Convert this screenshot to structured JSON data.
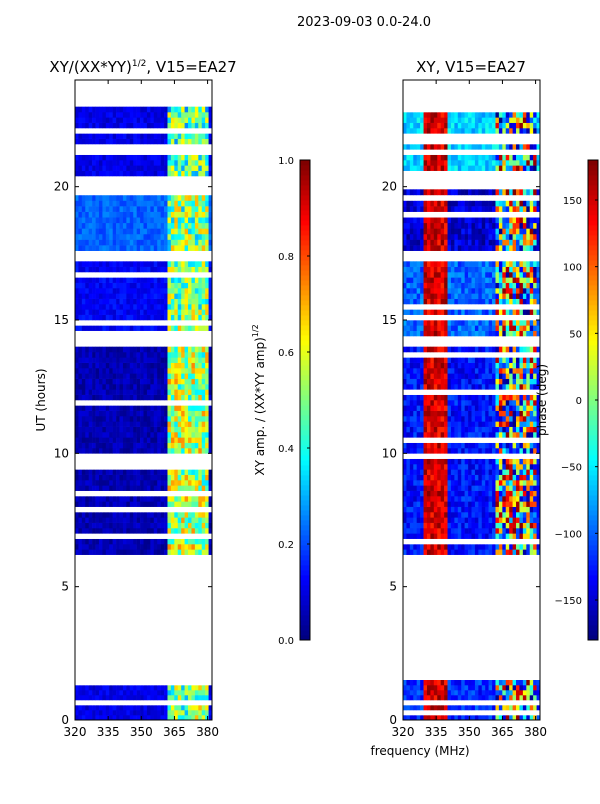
{
  "figure": {
    "suptitle": "2023-09-03 0.0-24.0",
    "shared_xlabel": "frequency (MHz)"
  },
  "chart_data": [
    {
      "type": "heatmap",
      "title_main": "XY/(XX*YY)",
      "title_sup": "1/2",
      "title_tail": ", V15=EA27",
      "ylabel": "UT (hours)",
      "xlim": [
        320,
        382
      ],
      "ylim": [
        0,
        24
      ],
      "xticks": [
        320,
        335,
        350,
        365,
        380
      ],
      "yticks": [
        0,
        5,
        10,
        15,
        20
      ],
      "colorbar": {
        "label_main": "XY amp. / (XX*YY amp)",
        "label_sup": "1/2",
        "range": [
          0.0,
          1.0
        ],
        "ticks": [
          "0.0",
          "0.2",
          "0.4",
          "0.6",
          "0.8",
          "1.0"
        ],
        "tick_values": [
          0.0,
          0.2,
          0.4,
          0.6,
          0.8,
          1.0
        ],
        "colormap": "jet"
      },
      "data_gaps_hours": [
        [
          1.5,
          6.2
        ],
        [
          14.0,
          14.4
        ],
        [
          17.2,
          17.6
        ],
        [
          19.9,
          20.4
        ],
        [
          23.0,
          24.0
        ]
      ],
      "regions": [
        {
          "t0": 0.0,
          "t1": 1.5,
          "value_low_band": 0.1,
          "value_high_band": 0.5
        },
        {
          "t0": 6.2,
          "t1": 14.0,
          "value_low_band": 0.05,
          "value_high_band": 0.55
        },
        {
          "t0": 14.4,
          "t1": 17.2,
          "value_low_band": 0.12,
          "value_high_band": 0.5
        },
        {
          "t0": 17.6,
          "t1": 19.9,
          "value_low_band": 0.22,
          "value_high_band": 0.5
        },
        {
          "t0": 20.4,
          "t1": 23.0,
          "value_low_band": 0.1,
          "value_high_band": 0.45
        }
      ],
      "bright_band_MHz": [
        362,
        380
      ]
    },
    {
      "type": "heatmap",
      "title": "XY, V15=EA27",
      "xlim": [
        320,
        382
      ],
      "ylim": [
        0,
        24
      ],
      "xticks": [
        320,
        335,
        350,
        365,
        380
      ],
      "yticks": [
        0,
        5,
        10,
        15,
        20
      ],
      "colorbar": {
        "label": "phase (deg)",
        "range": [
          -180,
          180
        ],
        "ticks": [
          "150",
          "100",
          "50",
          "0",
          "−50",
          "−100",
          "−150"
        ],
        "tick_values": [
          150,
          100,
          50,
          0,
          -50,
          -100,
          -150
        ],
        "colormap": "jet"
      },
      "data_gaps_hours": [
        [
          1.5,
          6.2
        ],
        [
          14.0,
          14.4
        ],
        [
          17.2,
          17.6
        ],
        [
          19.9,
          20.4
        ],
        [
          23.0,
          24.0
        ]
      ],
      "regions": [
        {
          "t0": 0.0,
          "t1": 1.5,
          "phase_deg": -120
        },
        {
          "t0": 6.2,
          "t1": 14.0,
          "phase_deg": -130
        },
        {
          "t0": 14.4,
          "t1": 17.2,
          "phase_deg": -100
        },
        {
          "t0": 17.6,
          "t1": 19.9,
          "phase_deg": -150
        },
        {
          "t0": 20.4,
          "t1": 23.0,
          "phase_deg": -60
        }
      ],
      "red_band_MHz": [
        330,
        340
      ],
      "variable_band_MHz": [
        362,
        380
      ]
    }
  ]
}
